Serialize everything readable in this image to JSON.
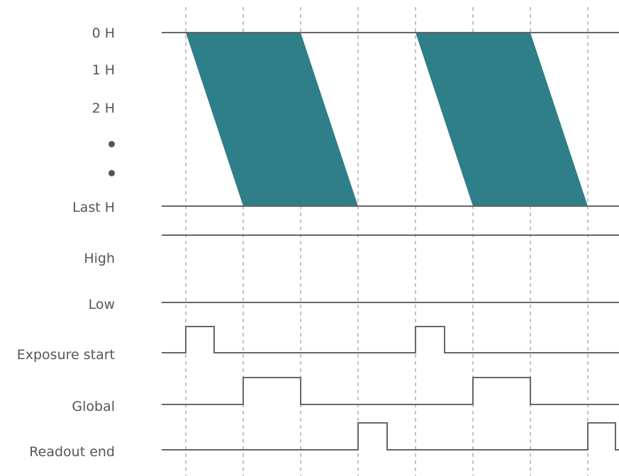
{
  "row_labels": {
    "h0": "0 H",
    "h1": "1 H",
    "h2": "2 H",
    "last_h": "Last H",
    "high": "High",
    "low": "Low",
    "exposure_start": "Exposure start",
    "global": "Global",
    "readout_end": "Readout end"
  },
  "colors": {
    "exposure_fill": "#2e7f88",
    "signal_line": "#666666",
    "guide_line": "#999999",
    "label_text": "#555555"
  }
}
